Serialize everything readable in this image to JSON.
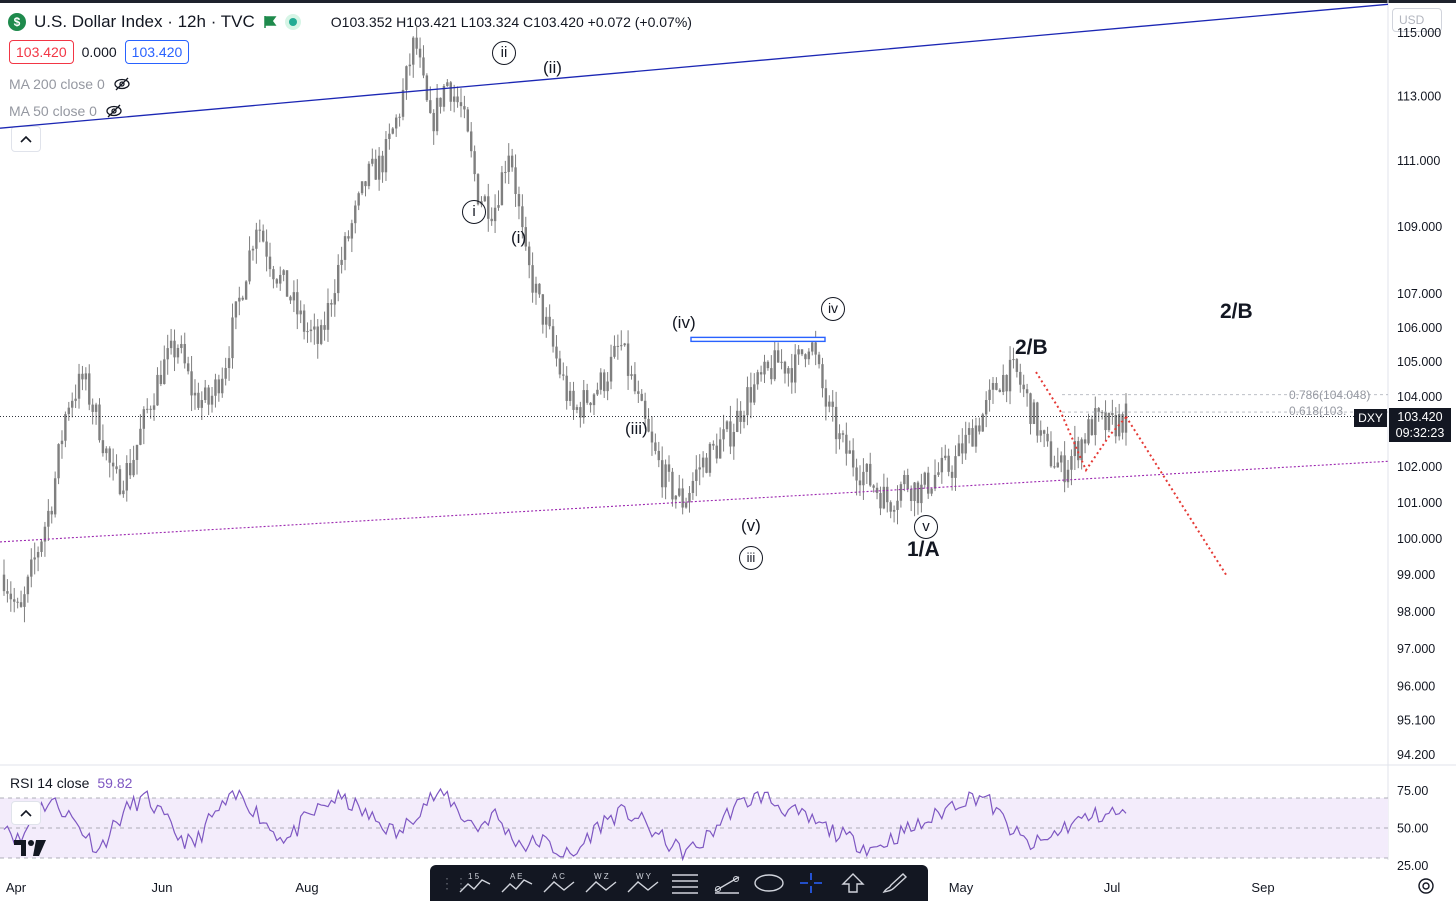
{
  "header": {
    "symbol_icon": "$",
    "title": "U.S. Dollar Index · 12h · TVC",
    "flag_icon": "flag-icon",
    "live_icon": "market-open-dot-icon",
    "ohlc": "O103.352  H103.421  L103.324  C103.420 +0.072 (+0.07%)"
  },
  "price_boxes": {
    "sell": "103.420",
    "spread": "0.000",
    "buy": "103.420"
  },
  "indicators": [
    {
      "label": "MA 200 close 0",
      "icon": "eye-hidden-icon"
    },
    {
      "label": "MA 50 close 0",
      "icon": "eye-hidden-icon"
    }
  ],
  "currency_label": "USD",
  "rsi": {
    "label": "RSI 14 close",
    "value": "59.82"
  },
  "last_price": {
    "symbol": "DXY",
    "price": "103.420",
    "countdown": "09:32:23"
  },
  "fib_levels": [
    {
      "label": "0.786(104.048)",
      "value": 104.048
    },
    {
      "label": "0.618(103.",
      "value": 103.55
    }
  ],
  "colors": {
    "up": "#22ab94",
    "down": "#f23645",
    "accent": "#2962ff",
    "candles": "#7f7f7f",
    "trendline": "#1c27b4",
    "support": "#9c27b0",
    "rsi_line": "#7e57c2",
    "rsi_band": "#f3ecfb",
    "projection": "#e53935"
  },
  "toolbar_icons": [
    "drag-grip-icon",
    "elliott-impulse-icon",
    "elliott-correction-icon",
    "elliott-triangle-icon",
    "elliott-double-combo-icon",
    "elliott-triple-combo-icon",
    "fib-retracement-icon",
    "trend-line-icon",
    "ellipse-icon",
    "crosshair-icon",
    "arrow-up-icon",
    "brush-icon"
  ],
  "toolbar_labels": [
    "1 5",
    "A E",
    "A C",
    "W Z",
    "W Y"
  ],
  "chart_data": [
    {
      "type": "line",
      "title": "U.S. Dollar Index · 12h · TVC",
      "xlabel": "",
      "ylabel": "",
      "y_scale": "log",
      "ylim": [
        93.6,
        115.6
      ],
      "x_ticks": [
        "Apr",
        "Jun",
        "Aug",
        "May",
        "Jul",
        "Sep"
      ],
      "y_ticks": [
        "94.200",
        "95.100",
        "96.000",
        "97.000",
        "98.000",
        "99.000",
        "100.000",
        "101.000",
        "102.000",
        "103.000",
        "104.000",
        "105.000",
        "106.000",
        "107.000",
        "109.000",
        "111.000",
        "113.000"
      ],
      "top_tick_partial": "115.000",
      "series": [
        {
          "values": [
            99.0,
            97.8,
            99.5,
            101.0,
            103.8,
            104.5,
            103.2,
            101.5,
            102.0,
            103.5,
            104.8,
            105.5,
            104.0,
            103.8,
            105.0,
            107.0,
            109.2,
            107.8,
            107.0,
            106.0,
            105.5,
            107.5,
            109.0,
            110.5,
            111.0,
            112.5,
            114.8,
            112.0,
            113.5,
            112.5,
            110.0,
            109.5,
            111.5,
            108.0,
            106.5,
            105.0,
            103.5,
            104.0,
            104.5,
            105.5,
            104.0,
            102.5,
            101.5,
            101.0,
            102.0,
            102.5,
            103.0,
            104.0,
            104.5,
            105.0,
            104.8,
            105.7,
            103.8,
            102.6,
            102.0,
            101.5,
            101.0,
            101.6,
            101.3,
            101.8,
            102.0,
            102.8,
            103.5,
            104.5,
            104.7,
            103.6,
            102.4,
            101.9,
            102.6,
            103.3,
            103.1,
            103.4
          ]
        }
      ],
      "projection": [
        103.42,
        99.0
      ],
      "trendlines": [
        {
          "from": 112.0,
          "to": 115.9
        },
        {
          "from": 99.9,
          "to": 102.15
        }
      ],
      "resistance_zone": 105.65,
      "wave_labels": [
        "i",
        "ii",
        "(i)",
        "(ii)",
        "(iii)",
        "(iv)",
        "(v)",
        "iii",
        "iv",
        "v",
        "1/A",
        "2/B",
        "2/B"
      ],
      "annotations": [
        "0.786(104.048)",
        "0.618(103."
      ]
    },
    {
      "type": "line",
      "title": "RSI 14 close",
      "ylim": [
        23,
        79
      ],
      "y_ticks": [
        "25.00",
        "50.00",
        "75.00"
      ],
      "band": [
        30,
        70
      ],
      "series": [
        {
          "name": "RSI 14 close",
          "values": [
            55,
            40,
            62,
            68,
            60,
            48,
            35,
            52,
            65,
            70,
            58,
            45,
            38,
            55,
            66,
            72,
            60,
            48,
            42,
            55,
            63,
            70,
            66,
            58,
            52,
            45,
            60,
            70,
            72,
            58,
            50,
            60,
            45,
            38,
            42,
            35,
            30,
            45,
            55,
            60,
            58,
            48,
            40,
            34,
            38,
            50,
            62,
            68,
            72,
            65,
            60,
            55,
            50,
            45,
            40,
            36,
            42,
            48,
            52,
            58,
            66,
            70,
            72,
            58,
            46,
            38,
            42,
            50,
            55,
            58,
            60,
            59.82
          ]
        }
      ]
    }
  ]
}
